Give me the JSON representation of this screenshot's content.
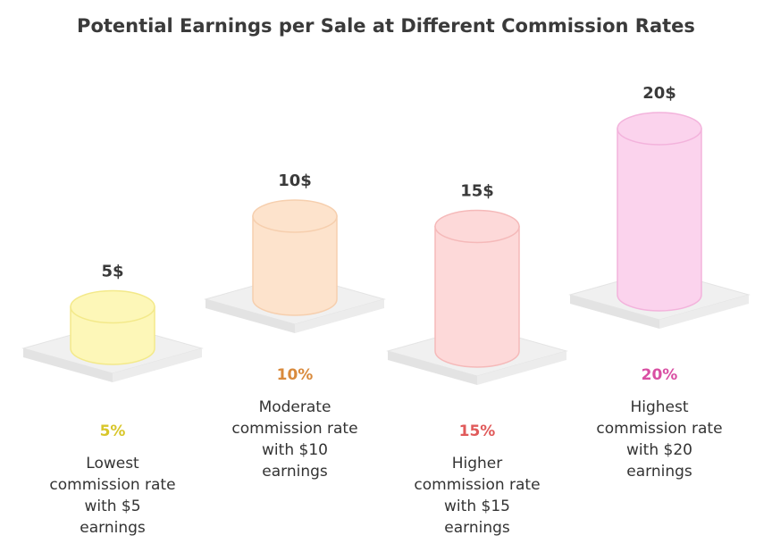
{
  "chart_data": {
    "type": "bar",
    "title": "Potential Earnings per Sale at Different Commission Rates",
    "categories": [
      "5%",
      "10%",
      "15%",
      "20%"
    ],
    "values": [
      5,
      10,
      15,
      20
    ],
    "value_labels": [
      "5$",
      "10$",
      "15$",
      "20$"
    ],
    "descriptions": [
      [
        "Lowest",
        "commission rate",
        "with $5",
        "earnings"
      ],
      [
        "Moderate",
        "commission rate",
        "with $10",
        "earnings"
      ],
      [
        "Higher",
        "commission rate",
        "with $15",
        "earnings"
      ],
      [
        "Highest",
        "commission rate",
        "with $20",
        "earnings"
      ]
    ],
    "colors": {
      "fill": [
        "#fdf7b8",
        "#fde3cc",
        "#fdd9d9",
        "#fbd3ed"
      ],
      "stroke": [
        "#f3e98a",
        "#f6cfae",
        "#f5b9b9",
        "#f3b3dc"
      ],
      "rate_text": [
        "#d8c62a",
        "#d98a3c",
        "#e05a5a",
        "#d94fa3"
      ]
    }
  }
}
